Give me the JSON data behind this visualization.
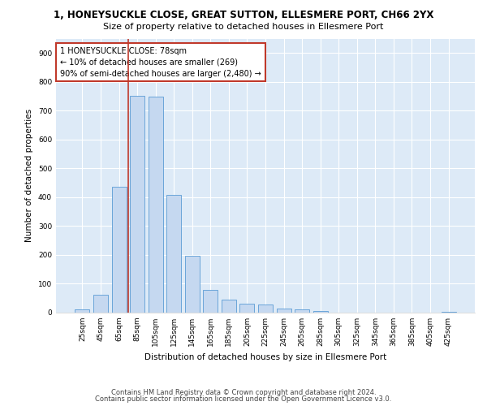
{
  "title1": "1, HONEYSUCKLE CLOSE, GREAT SUTTON, ELLESMERE PORT, CH66 2YX",
  "title2": "Size of property relative to detached houses in Ellesmere Port",
  "xlabel": "Distribution of detached houses by size in Ellesmere Port",
  "ylabel": "Number of detached properties",
  "categories": [
    "25sqm",
    "45sqm",
    "65sqm",
    "85sqm",
    "105sqm",
    "125sqm",
    "145sqm",
    "165sqm",
    "185sqm",
    "205sqm",
    "225sqm",
    "245sqm",
    "265sqm",
    "285sqm",
    "305sqm",
    "325sqm",
    "345sqm",
    "365sqm",
    "385sqm",
    "405sqm",
    "425sqm"
  ],
  "values": [
    10,
    62,
    437,
    752,
    750,
    407,
    198,
    79,
    45,
    30,
    28,
    15,
    10,
    5,
    0,
    0,
    0,
    0,
    0,
    0,
    3
  ],
  "bar_color": "#c5d8f0",
  "bar_edge_color": "#5a9bd5",
  "vline_pos": 2.5,
  "vline_color": "#c0392b",
  "annotation_text": "1 HONEYSUCKLE CLOSE: 78sqm\n← 10% of detached houses are smaller (269)\n90% of semi-detached houses are larger (2,480) →",
  "annotation_box_color": "white",
  "annotation_box_edge_color": "#c0392b",
  "ylim": [
    0,
    950
  ],
  "yticks": [
    0,
    100,
    200,
    300,
    400,
    500,
    600,
    700,
    800,
    900
  ],
  "footer1": "Contains HM Land Registry data © Crown copyright and database right 2024.",
  "footer2": "Contains public sector information licensed under the Open Government Licence v3.0.",
  "bg_color": "#ddeaf7",
  "grid_color": "white",
  "title_fontsize": 8.5,
  "subtitle_fontsize": 8,
  "axis_label_fontsize": 7.5,
  "tick_fontsize": 6.5,
  "annotation_fontsize": 7,
  "footer_fontsize": 6
}
